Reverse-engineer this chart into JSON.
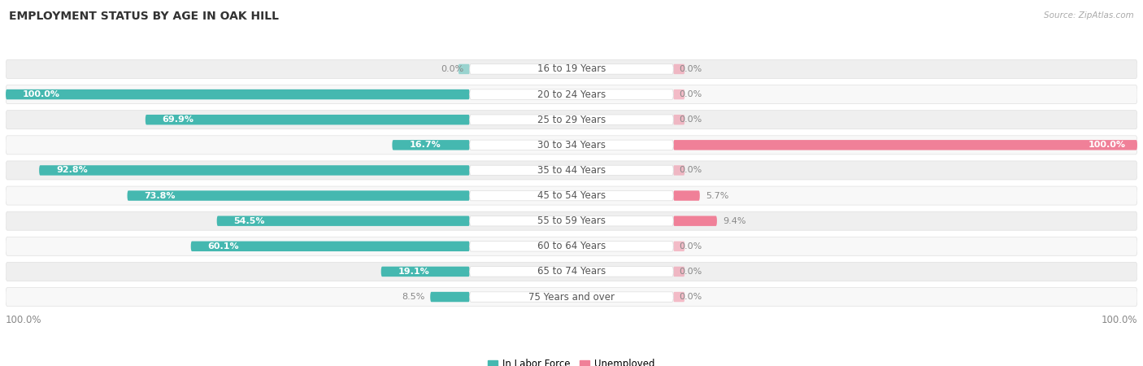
{
  "title": "EMPLOYMENT STATUS BY AGE IN OAK HILL",
  "source": "Source: ZipAtlas.com",
  "categories": [
    "16 to 19 Years",
    "20 to 24 Years",
    "25 to 29 Years",
    "30 to 34 Years",
    "35 to 44 Years",
    "45 to 54 Years",
    "55 to 59 Years",
    "60 to 64 Years",
    "65 to 74 Years",
    "75 Years and over"
  ],
  "in_labor_force": [
    0.0,
    100.0,
    69.9,
    16.7,
    92.8,
    73.8,
    54.5,
    60.1,
    19.1,
    8.5
  ],
  "unemployed": [
    0.0,
    0.0,
    0.0,
    100.0,
    0.0,
    5.7,
    9.4,
    0.0,
    0.0,
    0.0
  ],
  "labor_color": "#45b8b0",
  "unemployed_color": "#f08098",
  "bg_row_odd": "#efefef",
  "bg_row_even": "#f8f8f8",
  "row_border": "#e0e0e0",
  "center_label_color": "#555555",
  "label_color_dark": "#888888",
  "title_fontsize": 10,
  "label_fontsize": 8.5,
  "bar_text_fontsize": 8,
  "source_fontsize": 7.5,
  "legend_labels": [
    "In Labor Force",
    "Unemployed"
  ]
}
